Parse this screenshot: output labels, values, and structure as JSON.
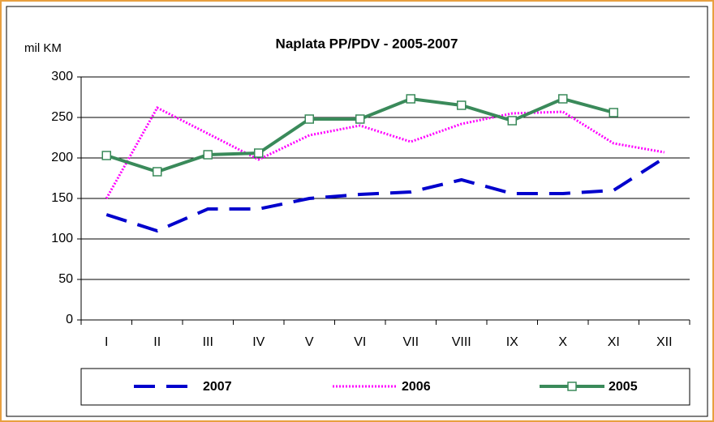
{
  "chart_data": {
    "type": "line",
    "title": "Naplata PP/PDV - 2005-2007",
    "y_label": "mil KM",
    "categories": [
      "I",
      "II",
      "III",
      "IV",
      "V",
      "VI",
      "VII",
      "VIII",
      "IX",
      "X",
      "XI",
      "XII"
    ],
    "series": [
      {
        "name": "2007",
        "color": "#0000cc",
        "style": "dashed",
        "values": [
          130,
          110,
          137,
          137,
          150,
          155,
          158,
          173,
          156,
          156,
          160,
          200
        ]
      },
      {
        "name": "2006",
        "color": "#ff00ff",
        "style": "dotted",
        "values": [
          150,
          262,
          230,
          198,
          228,
          240,
          220,
          242,
          255,
          257,
          218,
          207
        ]
      },
      {
        "name": "2005",
        "color": "#3a8a5a",
        "style": "solid-markers",
        "values": [
          203,
          183,
          204,
          206,
          248,
          248,
          273,
          265,
          246,
          273,
          256,
          null
        ]
      }
    ],
    "ylim": [
      0,
      300
    ],
    "yticks": [
      0,
      50,
      100,
      150,
      200,
      250,
      300
    ],
    "grid": true,
    "legend": "bottom"
  }
}
